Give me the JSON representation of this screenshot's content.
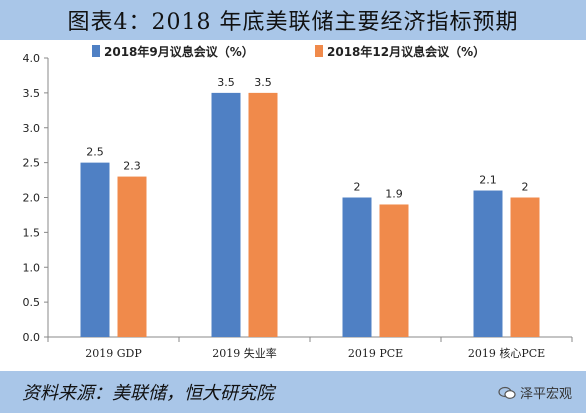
{
  "title": "图表4：2018 年底美联储主要经济指标预期",
  "source": "资料来源：美联储，恒大研究院",
  "brand": "泽平宏观",
  "brand_icon": "chat-bubble-icon",
  "colors": {
    "series1": "#4f80c4",
    "series2": "#f08a4b",
    "band": "#a9c6e8"
  },
  "chart_data": {
    "type": "bar",
    "categories": [
      "2019 GDP",
      "2019 失业率",
      "2019 PCE",
      "2019 核心PCE"
    ],
    "series": [
      {
        "name": "2018年9月议息会议（%）",
        "values": [
          2.5,
          3.5,
          2.0,
          2.1
        ],
        "labels": [
          "2.5",
          "3.5",
          "2",
          "2.1"
        ]
      },
      {
        "name": "2018年12月议息会议（%）",
        "values": [
          2.3,
          3.5,
          1.9,
          2.0
        ],
        "labels": [
          "2.3",
          "3.5",
          "1.9",
          "2"
        ]
      }
    ],
    "ylim": [
      0,
      4
    ],
    "yticks": [
      "0.0",
      "0.5",
      "1.0",
      "1.5",
      "2.0",
      "2.5",
      "3.0",
      "3.5",
      "4.0"
    ],
    "grid": false,
    "legend": "top"
  }
}
